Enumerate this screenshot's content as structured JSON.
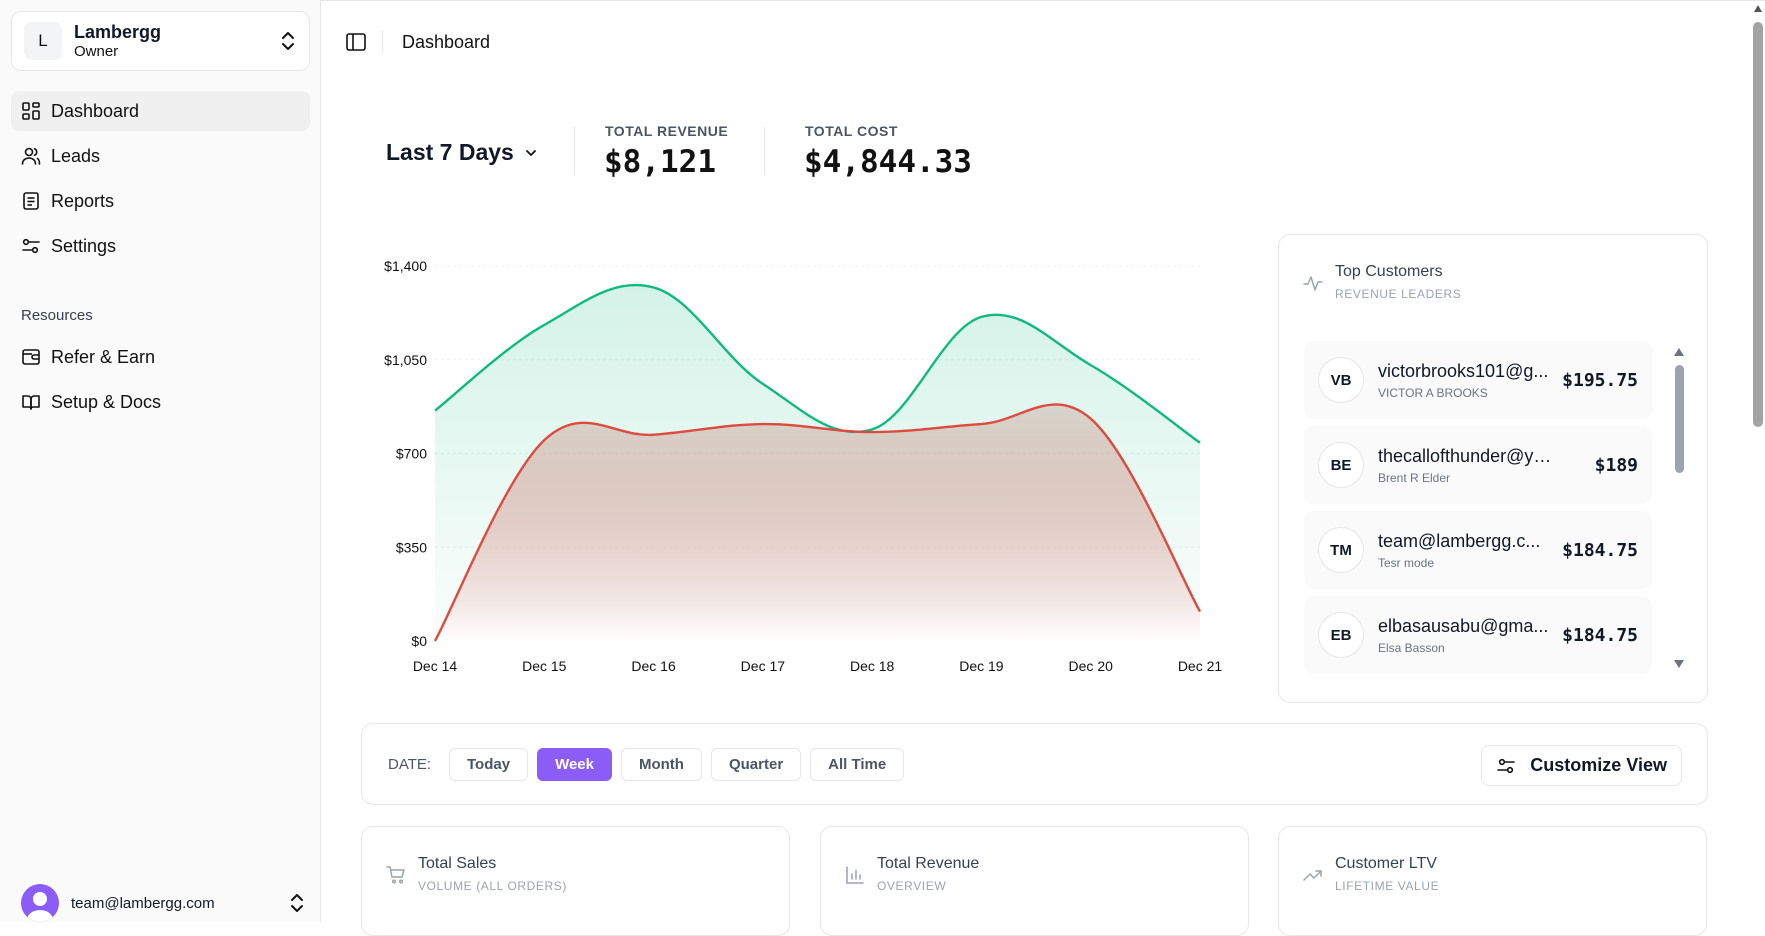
{
  "sidebar": {
    "org": {
      "initial": "L",
      "name": "Lambergg",
      "role": "Owner"
    },
    "nav": [
      {
        "label": "Dashboard",
        "icon": "grid-icon",
        "active": true
      },
      {
        "label": "Leads",
        "icon": "users-icon"
      },
      {
        "label": "Reports",
        "icon": "document-icon"
      },
      {
        "label": "Settings",
        "icon": "sliders-icon"
      }
    ],
    "section_title": "Resources",
    "resources": [
      {
        "label": "Refer & Earn",
        "icon": "wallet-icon"
      },
      {
        "label": "Setup & Docs",
        "icon": "book-icon"
      }
    ],
    "user_email": "team@lambergg.com"
  },
  "topbar": {
    "breadcrumb": "Dashboard"
  },
  "summary": {
    "range": "Last 7 Days",
    "revenue_label": "TOTAL REVENUE",
    "revenue_value": "$8,121",
    "cost_label": "TOTAL COST",
    "cost_value": "$4,844.33"
  },
  "chart_data": {
    "type": "area",
    "x": [
      "Dec 14",
      "Dec 15",
      "Dec 16",
      "Dec 17",
      "Dec 18",
      "Dec 19",
      "Dec 20",
      "Dec 21"
    ],
    "y_ticks": [
      "$0",
      "$350",
      "$700",
      "$1,050",
      "$1,400"
    ],
    "ylim": [
      0,
      1400
    ],
    "grid": true,
    "series": [
      {
        "color": "#10b981",
        "values": [
          860,
          1180,
          1320,
          960,
          790,
          1210,
          1030,
          740
        ]
      },
      {
        "color": "#dc4b3e",
        "values": [
          0,
          750,
          770,
          810,
          780,
          810,
          830,
          110
        ]
      }
    ]
  },
  "top_customers": {
    "title": "Top Customers",
    "subtitle": "REVENUE LEADERS",
    "items": [
      {
        "initials": "VB",
        "email": "victorbrooks101@g...",
        "name": "VICTOR A BROOKS",
        "amount": "$195.75"
      },
      {
        "initials": "BE",
        "email": "thecallofthunder@yah...",
        "name": "Brent R Elder",
        "amount": "$189"
      },
      {
        "initials": "TM",
        "email": "team@lambergg.c...",
        "name": "Tesr mode",
        "amount": "$184.75"
      },
      {
        "initials": "EB",
        "email": "elbasausabu@gma...",
        "name": "Elsa Basson",
        "amount": "$184.75"
      }
    ]
  },
  "filters": {
    "label": "DATE:",
    "options": [
      "Today",
      "Week",
      "Month",
      "Quarter",
      "All Time"
    ],
    "selected": "Week",
    "customize_label": "Customize View"
  },
  "stat_cards": [
    {
      "title": "Total Sales",
      "subtitle": "VOLUME (ALL ORDERS)",
      "icon": "cart-icon"
    },
    {
      "title": "Total Revenue",
      "subtitle": "OVERVIEW",
      "icon": "bar-chart-icon"
    },
    {
      "title": "Customer LTV",
      "subtitle": "LIFETIME VALUE",
      "icon": "trending-up-icon"
    }
  ],
  "colors": {
    "accent": "#8b5cf6",
    "revenue": "#10b981",
    "cost": "#dc4b3e"
  }
}
